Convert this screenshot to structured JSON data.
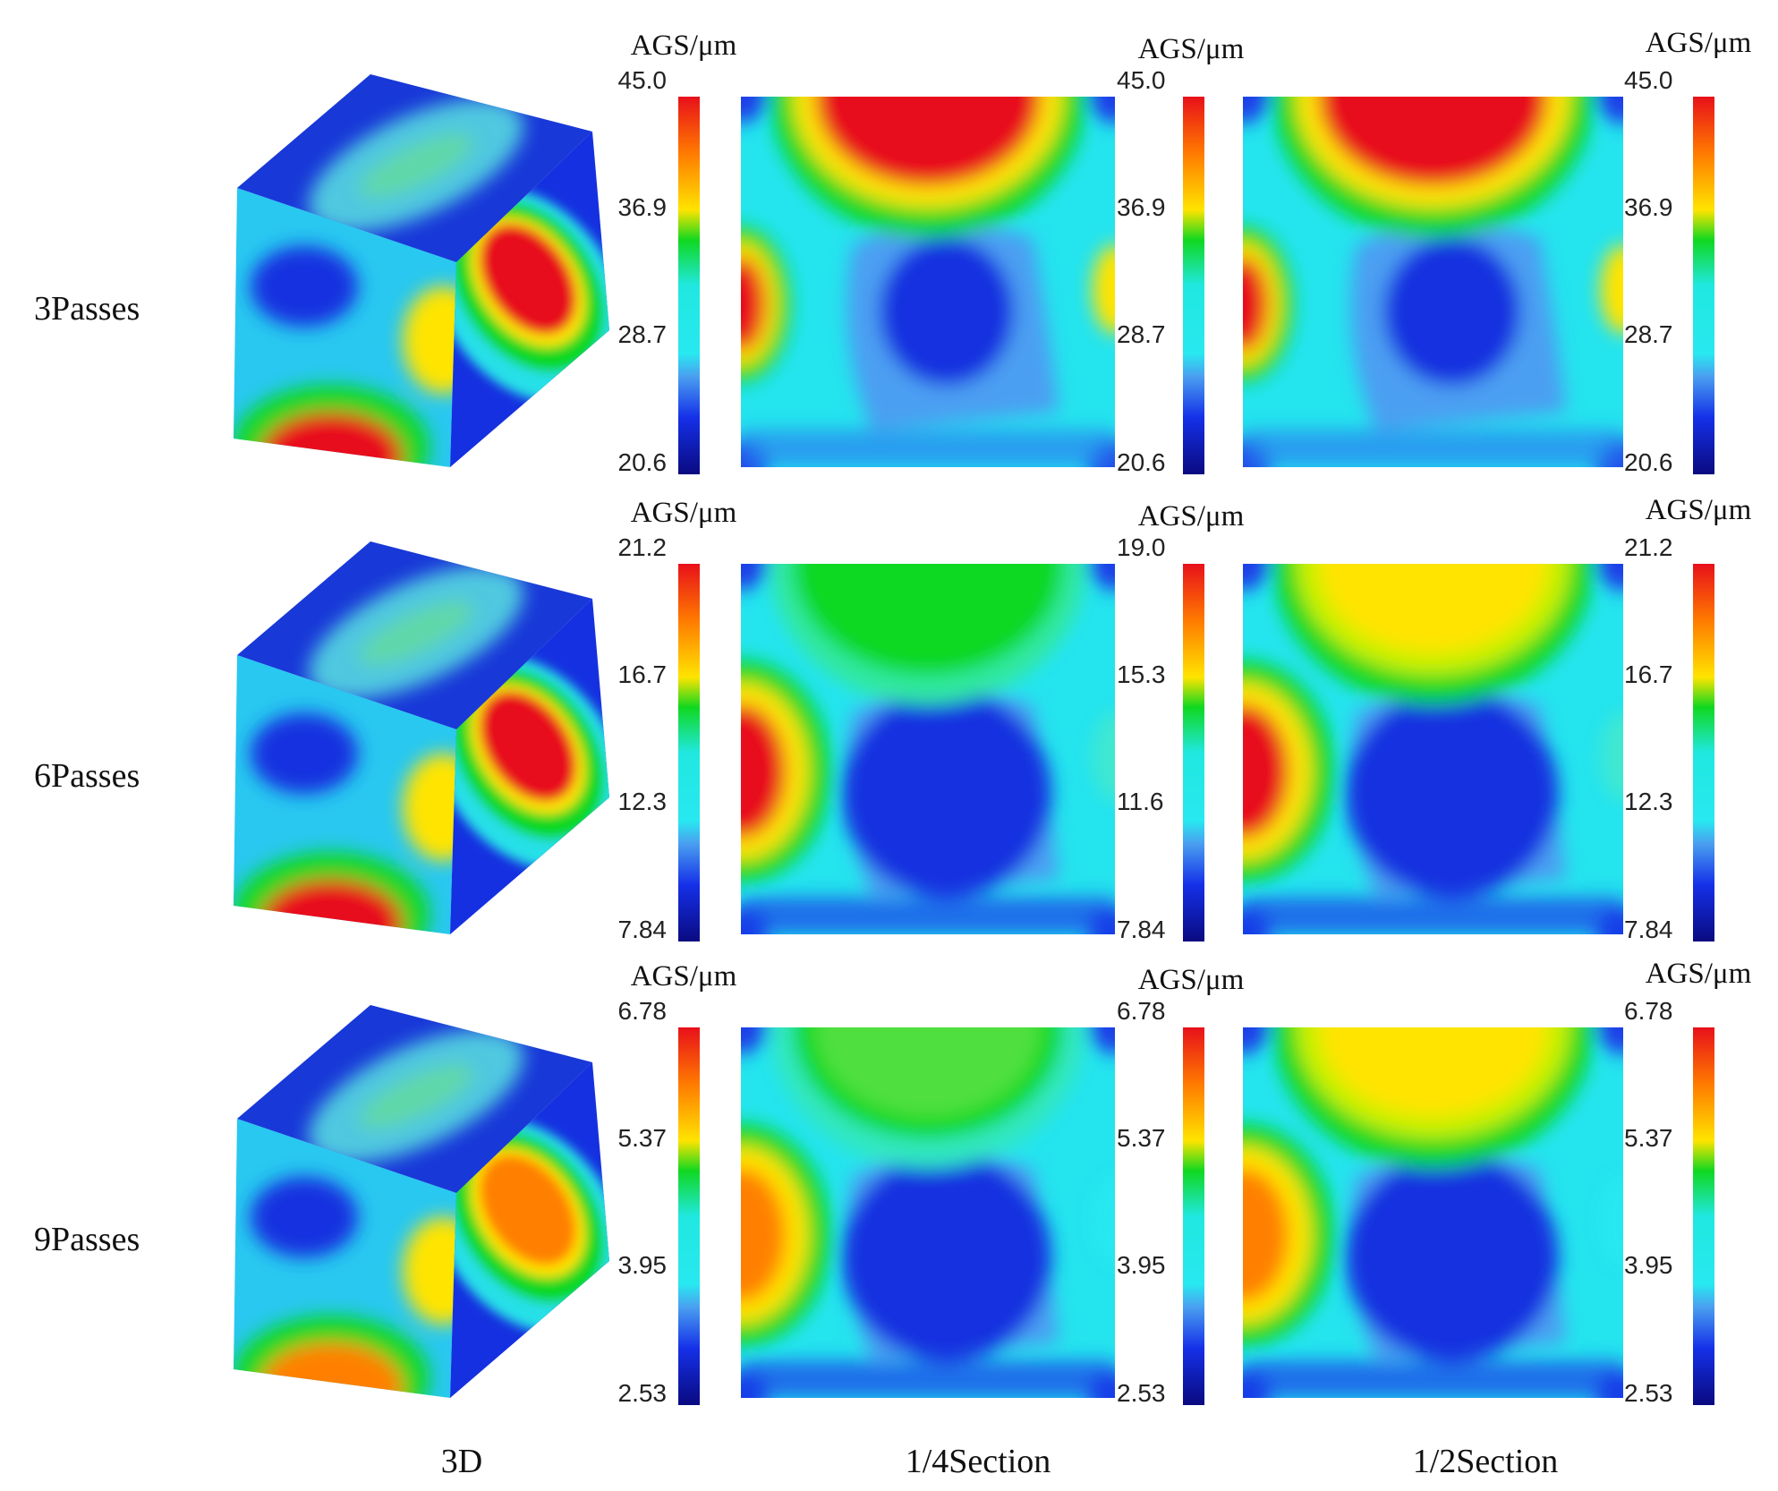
{
  "rows": [
    {
      "label": "3Passes",
      "colorbars": [
        {
          "title": "AGS/μm",
          "ticks": [
            "45.0",
            "36.9",
            "28.7",
            "20.6"
          ]
        },
        {
          "title": "AGS/μm",
          "ticks": [
            "45.0",
            "36.9",
            "28.7",
            "20.6"
          ]
        },
        {
          "title": "AGS/μm",
          "ticks": [
            "45.0",
            "36.9",
            "28.7",
            "20.6"
          ]
        }
      ]
    },
    {
      "label": "6Passes",
      "colorbars": [
        {
          "title": "AGS/μm",
          "ticks": [
            "21.2",
            "16.7",
            "12.3",
            "7.84"
          ]
        },
        {
          "title": "AGS/μm",
          "ticks": [
            "19.0",
            "15.3",
            "11.6",
            "7.84"
          ]
        },
        {
          "title": "AGS/μm",
          "ticks": [
            "21.2",
            "16.7",
            "12.3",
            "7.84"
          ]
        }
      ]
    },
    {
      "label": "9Passes",
      "colorbars": [
        {
          "title": "AGS/μm",
          "ticks": [
            "6.78",
            "5.37",
            "3.95",
            "2.53"
          ]
        },
        {
          "title": "AGS/μm",
          "ticks": [
            "6.78",
            "5.37",
            "3.95",
            "2.53"
          ]
        },
        {
          "title": "AGS/μm",
          "ticks": [
            "6.78",
            "5.37",
            "3.95",
            "2.53"
          ]
        }
      ]
    }
  ],
  "columns": [
    "3D",
    "1/4Section",
    "1/2Section"
  ]
}
